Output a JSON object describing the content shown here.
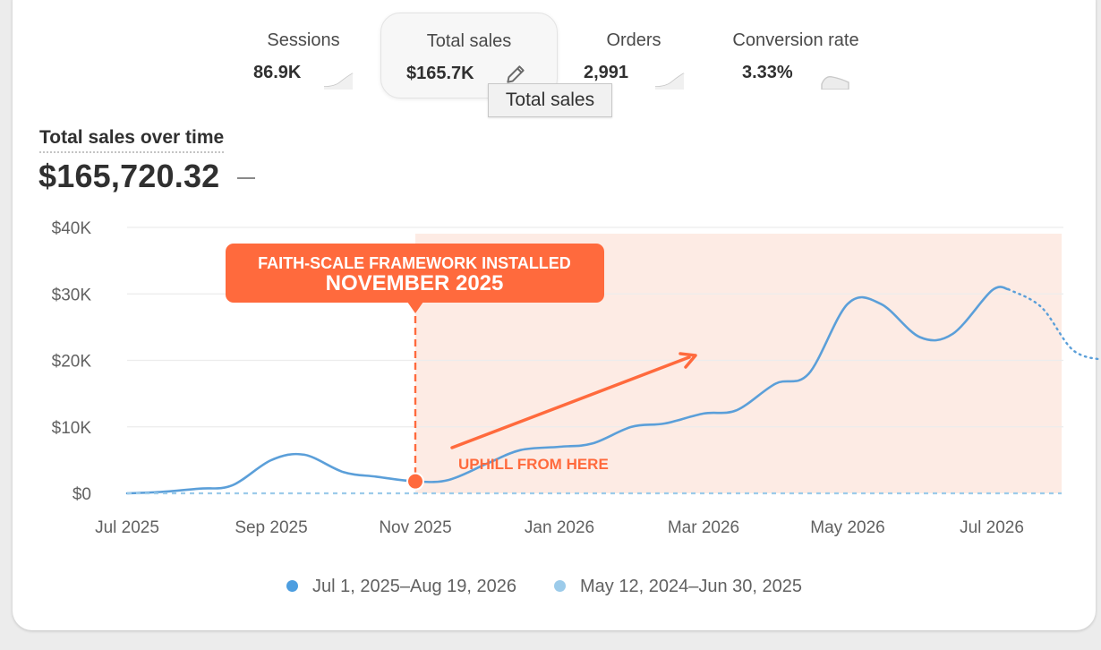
{
  "metrics": [
    {
      "label": "Sessions",
      "value": "86.9K",
      "trend": "up"
    },
    {
      "label": "Total sales",
      "value": "$165.7K",
      "active": true,
      "action_icon": "pencil-icon"
    },
    {
      "label": "Orders",
      "value": "2,991",
      "trend": "up"
    },
    {
      "label": "Conversion rate",
      "value": "3.33%",
      "trend": "flat"
    }
  ],
  "tooltip": "Total sales",
  "chart_title": "Total sales over time",
  "chart_total": "$165,720.32",
  "colors": {
    "current": "#5b9fd9",
    "previous": "#9ccbea",
    "accent": "#ff6a3d",
    "highlight_region": "#fdebe4"
  },
  "annotation": {
    "line1": "FAITH-SCALE FRAMEWORK INSTALLED",
    "line2": "NOVEMBER 2025",
    "uphill_label": "UPHILL FROM HERE",
    "marker_date": "Nov 2025",
    "highlight_from": "Nov 2025"
  },
  "chart_data": {
    "type": "line",
    "x_ticks": [
      "Jul 2025",
      "Sep 2025",
      "Nov 2025",
      "Jan 2026",
      "Mar 2026",
      "May 2026",
      "Jul 2026"
    ],
    "y_ticks": [
      "$0",
      "$10K",
      "$20K",
      "$30K",
      "$40K"
    ],
    "ylim": [
      0,
      40000
    ],
    "grid": true,
    "legend_position": "bottom",
    "series": [
      {
        "name": "Jul 1, 2025–Aug 19, 2026",
        "style": "solid",
        "points": [
          [
            "2025-07-01",
            0
          ],
          [
            "2025-07-15",
            200
          ],
          [
            "2025-08-01",
            700
          ],
          [
            "2025-08-15",
            1200
          ],
          [
            "2025-09-01",
            5000
          ],
          [
            "2025-09-15",
            5800
          ],
          [
            "2025-10-01",
            3200
          ],
          [
            "2025-10-15",
            2500
          ],
          [
            "2025-11-01",
            1800
          ],
          [
            "2025-11-15",
            2000
          ],
          [
            "2025-12-01",
            4500
          ],
          [
            "2025-12-15",
            6500
          ],
          [
            "2026-01-01",
            7000
          ],
          [
            "2026-01-15",
            7500
          ],
          [
            "2026-02-01",
            10000
          ],
          [
            "2026-02-15",
            10500
          ],
          [
            "2026-03-01",
            12000
          ],
          [
            "2026-03-15",
            12500
          ],
          [
            "2026-04-01",
            16500
          ],
          [
            "2026-04-15",
            18000
          ],
          [
            "2026-05-01",
            28500
          ],
          [
            "2026-05-15",
            28500
          ],
          [
            "2026-06-01",
            23500
          ],
          [
            "2026-06-15",
            24000
          ],
          [
            "2026-07-01",
            30500
          ],
          [
            "2026-07-08",
            30700
          ]
        ]
      },
      {
        "name": "Jul 1, 2025–Aug 19, 2026",
        "style": "dotted",
        "points": [
          [
            "2026-07-08",
            30700
          ],
          [
            "2026-07-22",
            28000
          ],
          [
            "2026-08-05",
            21500
          ],
          [
            "2026-08-19",
            20000
          ]
        ]
      },
      {
        "name": "May 12, 2024–Jun 30, 2025",
        "style": "dashed",
        "points": [
          [
            "2025-07-01",
            0
          ],
          [
            "2026-08-19",
            0
          ]
        ]
      }
    ]
  },
  "legend": [
    {
      "label": "Jul 1, 2025–Aug 19, 2026",
      "color": "#4d9ee0"
    },
    {
      "label": "May 12, 2024–Jun 30, 2025",
      "color": "#9ccbea"
    }
  ]
}
